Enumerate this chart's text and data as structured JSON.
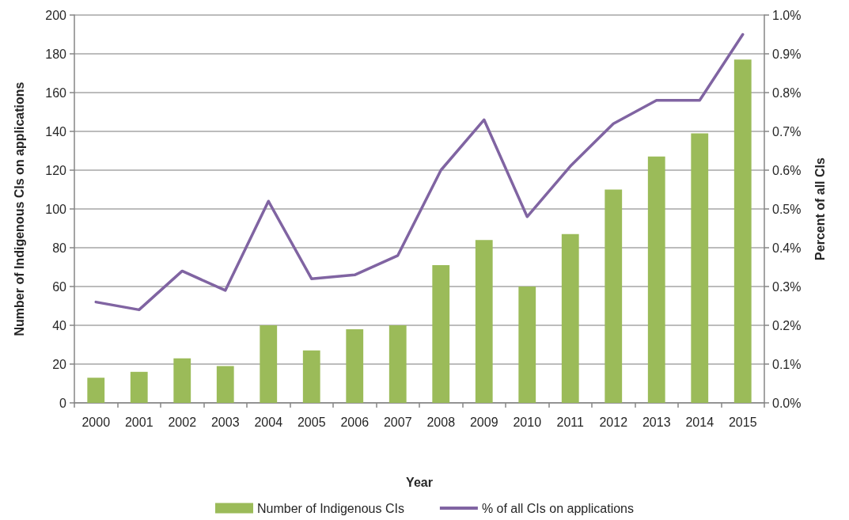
{
  "chart_data": {
    "type": "bar",
    "xlabel": "Year",
    "ylabel": "Number of Indigenous CIs on applications",
    "y2label": "Percent of all CIs",
    "categories": [
      "2000",
      "2001",
      "2002",
      "2003",
      "2004",
      "2005",
      "2006",
      "2007",
      "2008",
      "2009",
      "2010",
      "2011",
      "2012",
      "2013",
      "2014",
      "2015"
    ],
    "series": [
      {
        "name": "Number of Indigenous CIs",
        "color": "#9bbb59",
        "values": [
          13,
          16,
          23,
          19,
          40,
          27,
          38,
          40,
          71,
          84,
          60,
          87,
          110,
          127,
          139,
          177
        ]
      },
      {
        "name": "% of all CIs on applications",
        "type": "line",
        "axis": "y2",
        "color": "#8064a2",
        "values": [
          0.26,
          0.24,
          0.34,
          0.29,
          0.52,
          0.32,
          0.33,
          0.38,
          0.6,
          0.73,
          0.48,
          0.61,
          0.72,
          0.78,
          0.78,
          0.95
        ]
      }
    ],
    "ylim": [
      0,
      200
    ],
    "yticks": [
      0,
      20,
      40,
      60,
      80,
      100,
      120,
      140,
      160,
      180,
      200
    ],
    "y2lim": [
      0,
      1.0
    ],
    "y2ticks": [
      {
        "value": 0,
        "label": "0.0%"
      },
      {
        "value": 0.1,
        "label": "0.1%"
      },
      {
        "value": 0.2,
        "label": "0.2%"
      },
      {
        "value": 0.3,
        "label": "0.3%"
      },
      {
        "value": 0.4,
        "label": "0.4%"
      },
      {
        "value": 0.5,
        "label": "0.5%"
      },
      {
        "value": 0.6,
        "label": "0.6%"
      },
      {
        "value": 0.7,
        "label": "0.7%"
      },
      {
        "value": 0.8,
        "label": "0.8%"
      },
      {
        "value": 0.9,
        "label": "0.9%"
      },
      {
        "value": 1.0,
        "label": "1.0%"
      }
    ],
    "grid": "y",
    "legend": "bottom"
  }
}
